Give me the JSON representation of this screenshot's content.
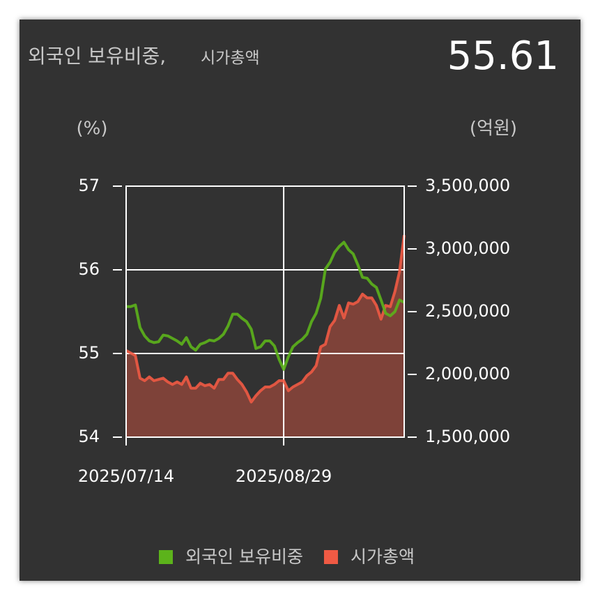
{
  "chart_data": {
    "type": "line",
    "title": "외국인 보유비중,",
    "subtitle": "시가총액",
    "current_value": 55.61,
    "ylabel": "(%)",
    "y2label": "(억원)",
    "categories": [
      "2025/07/14",
      null,
      null,
      null,
      null,
      null,
      null,
      null,
      null,
      null,
      null,
      null,
      null,
      null,
      null,
      null,
      null,
      null,
      null,
      null,
      null,
      null,
      null,
      null,
      null,
      null,
      null,
      null,
      null,
      null,
      null,
      null,
      null,
      null,
      "2025/08/29",
      null,
      null,
      null,
      null,
      null,
      null,
      null,
      null,
      null,
      null,
      null,
      null,
      null,
      null,
      null,
      null,
      null,
      null,
      null,
      null,
      null,
      null,
      null,
      null,
      null,
      null
    ],
    "ylim": [
      54,
      57
    ],
    "yticks": [
      54,
      55,
      56,
      57
    ],
    "y2lim": [
      1500000,
      3500000
    ],
    "y2ticks": [
      {
        "value": 1500000,
        "label": "1,500,000"
      },
      {
        "value": 2000000,
        "label": "2,000,000"
      },
      {
        "value": 2500000,
        "label": "2,500,000"
      },
      {
        "value": 3000000,
        "label": "3,000,000"
      },
      {
        "value": 3500000,
        "label": "3,500,000"
      }
    ],
    "grid": true,
    "series": [
      {
        "name": "외국인 보유비중",
        "color": "#5cb31b",
        "axis": "y",
        "values": [
          55.56,
          55.56,
          55.58,
          55.31,
          55.21,
          55.15,
          55.13,
          55.14,
          55.22,
          55.21,
          55.18,
          55.15,
          55.11,
          55.19,
          55.08,
          55.04,
          55.11,
          55.13,
          55.16,
          55.15,
          55.18,
          55.23,
          55.33,
          55.47,
          55.47,
          55.42,
          55.38,
          55.29,
          55.06,
          55.08,
          55.15,
          55.15,
          55.09,
          54.93,
          54.81,
          54.96,
          55.08,
          55.13,
          55.17,
          55.23,
          55.38,
          55.48,
          55.66,
          56.01,
          56.09,
          56.21,
          56.28,
          56.33,
          56.24,
          56.19,
          56.06,
          55.91,
          55.9,
          55.83,
          55.79,
          55.64,
          55.48,
          55.45,
          55.5,
          55.64,
          55.61
        ]
      },
      {
        "name": "시가총액",
        "color": "#f05a44",
        "axis": "y2",
        "area": true,
        "values": [
          2190000,
          2170000,
          2150000,
          1970000,
          1950000,
          1980000,
          1950000,
          1960000,
          1970000,
          1940000,
          1920000,
          1940000,
          1920000,
          1980000,
          1890000,
          1890000,
          1930000,
          1910000,
          1920000,
          1890000,
          1960000,
          1960000,
          2010000,
          2010000,
          1960000,
          1920000,
          1860000,
          1780000,
          1830000,
          1870000,
          1900000,
          1900000,
          1920000,
          1950000,
          1950000,
          1870000,
          1900000,
          1920000,
          1940000,
          1990000,
          2020000,
          2070000,
          2220000,
          2240000,
          2380000,
          2430000,
          2550000,
          2450000,
          2570000,
          2560000,
          2580000,
          2640000,
          2610000,
          2610000,
          2550000,
          2440000,
          2550000,
          2540000,
          2660000,
          2820000,
          3110000
        ]
      }
    ]
  }
}
